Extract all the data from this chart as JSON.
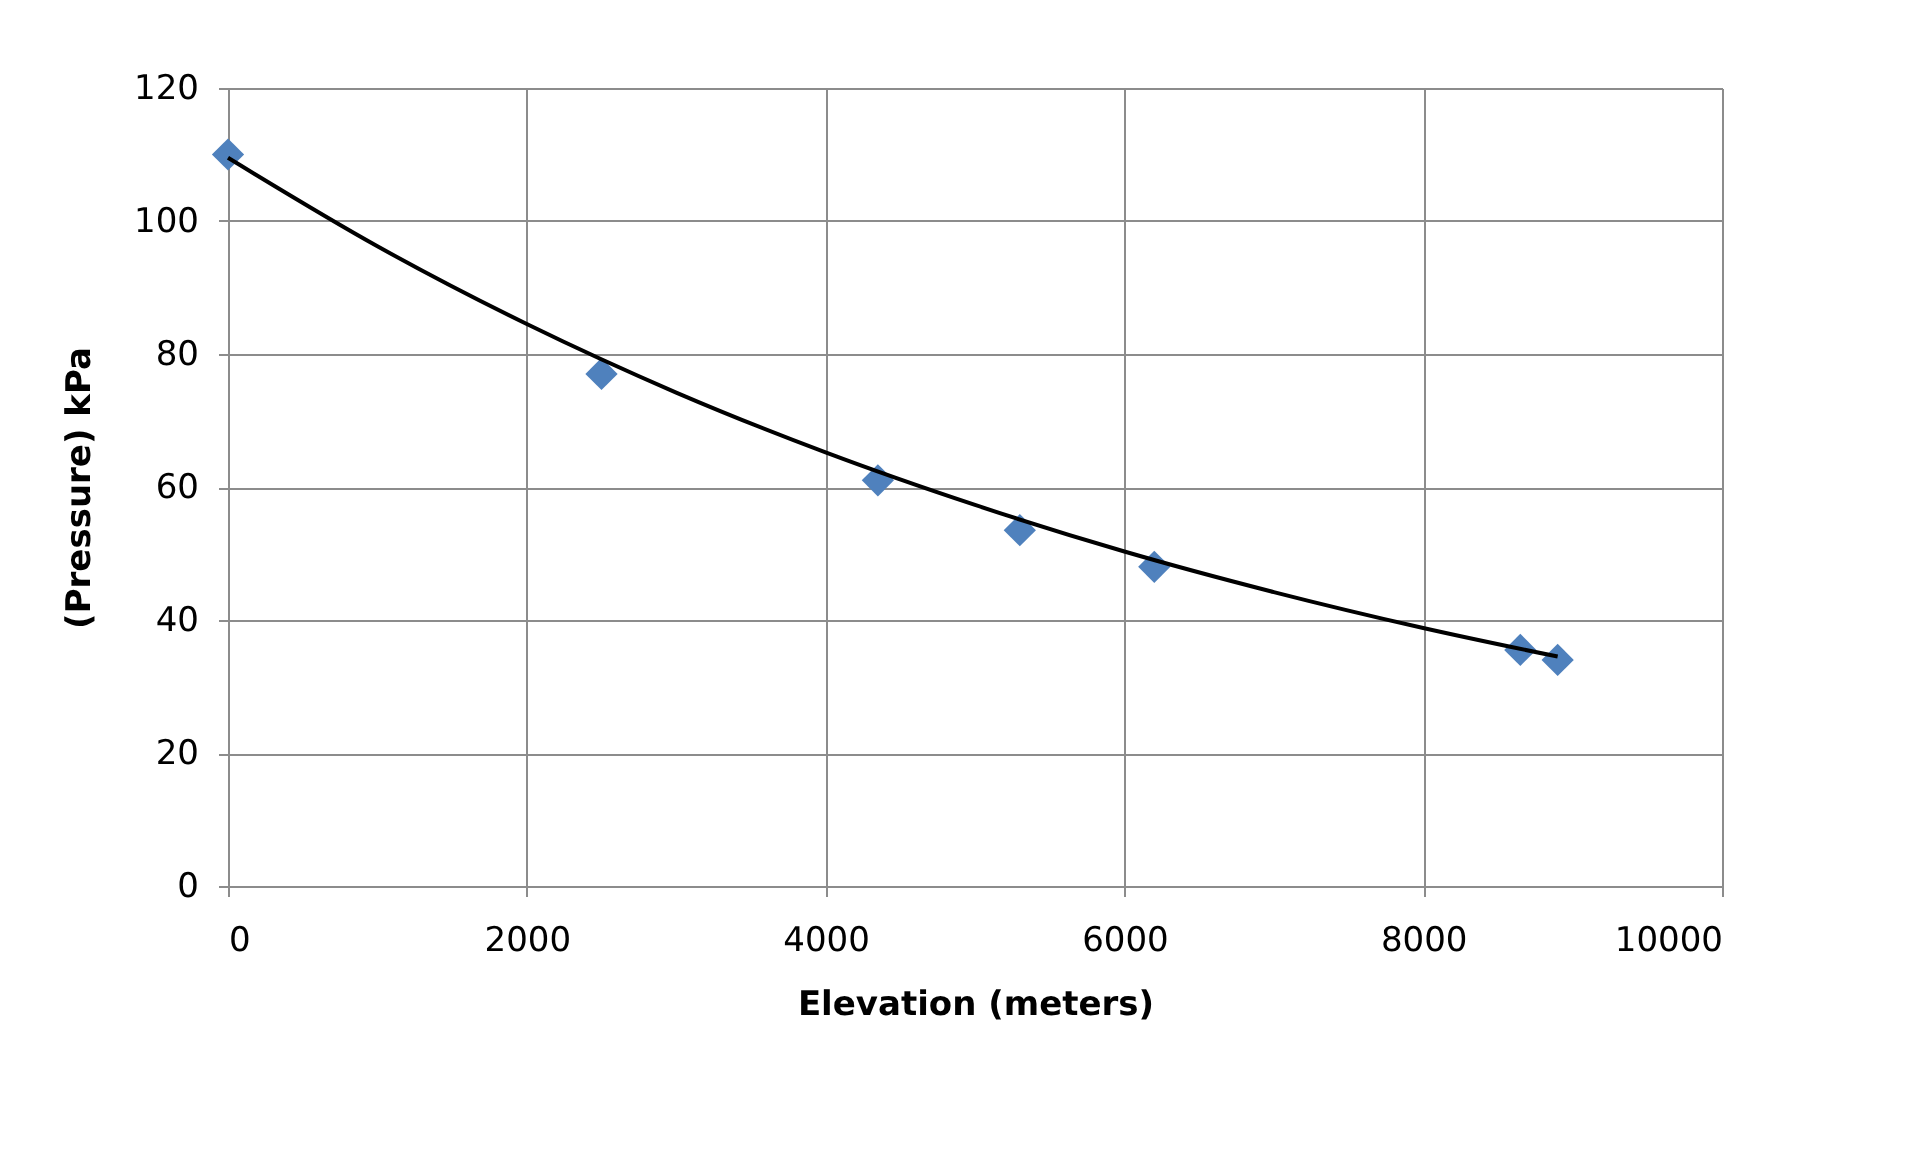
{
  "chart_data": {
    "type": "scatter",
    "xlabel": "Elevation (meters)",
    "ylabel": "(Pressure) kPa",
    "xlim": [
      0,
      10000
    ],
    "xticks": [
      0,
      2000,
      4000,
      6000,
      8000,
      10000
    ],
    "ylim": [
      0,
      120
    ],
    "yticks": [
      0,
      20,
      40,
      60,
      80,
      100,
      120
    ],
    "grid": true,
    "series": [
      {
        "marker": "diamond",
        "color": "#4f81bd",
        "x": [
          0,
          2500,
          4350,
          5300,
          6200,
          8650,
          8900
        ],
        "values": [
          110,
          77,
          61,
          53.5,
          48,
          35.5,
          34
        ]
      },
      {
        "type": "line",
        "marker": "none",
        "color": "#000000",
        "line_style": "solid",
        "x": [
          0,
          1000,
          2000,
          3000,
          4000,
          5000,
          6000,
          7000,
          8000,
          8900
        ],
        "values": [
          109.5,
          96.2,
          84.5,
          74.2,
          65.2,
          57.3,
          50.3,
          44.2,
          38.8,
          34.5
        ]
      }
    ]
  }
}
